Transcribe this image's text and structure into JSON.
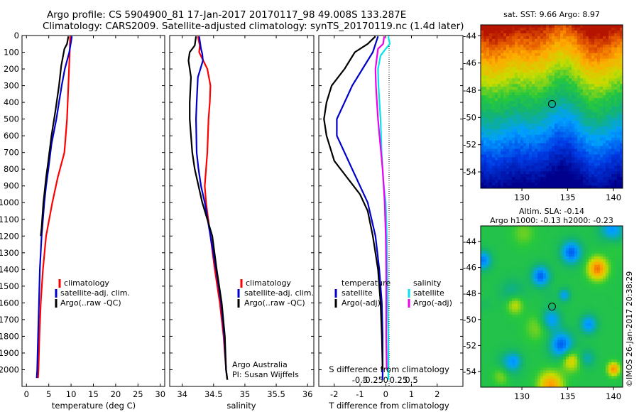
{
  "header": {
    "title_line1": "Argo profile: CS 5904900_81 17-Jan-2017 20170117_98 49.008S 133.287E",
    "title_line2": "Climatology: CARS2009. Satellite-adjusted climatology: synTS_20170119.nc (1.4d later)"
  },
  "colors": {
    "climatology": "#ff0000",
    "satellite": "#0000cc",
    "argo": "#000000",
    "satellite_s": "#00e5ee",
    "argo_s_diff": "#ee00ee"
  },
  "chart_data": [
    {
      "type": "line",
      "id": "temperature-profile",
      "xlabel": "temperature (deg C)",
      "ylabel": "",
      "xlim": [
        -1,
        31
      ],
      "ylim": [
        2100,
        0
      ],
      "xticks": [
        0,
        5,
        10,
        15,
        20,
        25,
        30
      ],
      "yticks": [
        0,
        100,
        200,
        300,
        400,
        500,
        600,
        700,
        800,
        900,
        1000,
        1100,
        1200,
        1300,
        1400,
        1500,
        1600,
        1700,
        1800,
        1900,
        2000
      ],
      "legend": {
        "placement": "bottom-center",
        "entries": [
          "climatology",
          "satellite-adj. clim.",
          "Argo(..raw -QC)"
        ]
      },
      "series": [
        {
          "name": "climatology",
          "color": "#ff0000",
          "points": [
            [
              9.8,
              5
            ],
            [
              9.7,
              100
            ],
            [
              9.4,
              300
            ],
            [
              9.1,
              500
            ],
            [
              8.5,
              700
            ],
            [
              7.0,
              850
            ],
            [
              5.8,
              1000
            ],
            [
              4.4,
              1200
            ],
            [
              3.7,
              1400
            ],
            [
              3.2,
              1600
            ],
            [
              2.9,
              1800
            ],
            [
              2.7,
              2000
            ],
            [
              2.6,
              2050
            ]
          ]
        },
        {
          "name": "satellite-adj. clim.",
          "color": "#0000cc",
          "points": [
            [
              10.2,
              5
            ],
            [
              9.6,
              100
            ],
            [
              8.6,
              200
            ],
            [
              7.9,
              300
            ],
            [
              7.3,
              400
            ],
            [
              6.7,
              500
            ],
            [
              5.6,
              650
            ],
            [
              4.9,
              800
            ],
            [
              4.4,
              900
            ],
            [
              4.0,
              1000
            ],
            [
              3.4,
              1200
            ],
            [
              3.0,
              1400
            ],
            [
              2.8,
              1600
            ],
            [
              2.6,
              1800
            ],
            [
              2.4,
              2000
            ],
            [
              2.3,
              2050
            ]
          ]
        },
        {
          "name": "Argo(..raw -QC)",
          "color": "#000000",
          "points": [
            [
              9.4,
              5
            ],
            [
              9.1,
              50
            ],
            [
              8.5,
              80
            ],
            [
              7.8,
              180
            ],
            [
              7.3,
              300
            ],
            [
              6.5,
              450
            ],
            [
              5.6,
              600
            ],
            [
              4.9,
              750
            ],
            [
              4.4,
              850
            ],
            [
              4.0,
              950
            ],
            [
              3.8,
              1000
            ],
            [
              3.4,
              1150
            ],
            [
              3.2,
              1200
            ]
          ]
        }
      ]
    },
    {
      "type": "line",
      "id": "salinity-profile",
      "xlabel": "salinity",
      "ylabel": "",
      "xlim": [
        33.8,
        36.1
      ],
      "ylim": [
        2100,
        0
      ],
      "xticks": [
        34,
        34.5,
        35,
        35.5,
        36
      ],
      "legend": {
        "placement": "bottom-right",
        "entries": [
          "climatology",
          "satellite-adj. clim.",
          "Argo(..raw -QC)"
        ]
      },
      "annotations": [
        "Argo Australia",
        "PI: Susan Wijffels"
      ],
      "series": [
        {
          "name": "climatology",
          "color": "#ff0000",
          "points": [
            [
              34.25,
              5
            ],
            [
              34.28,
              60
            ],
            [
              34.27,
              100
            ],
            [
              34.4,
              200
            ],
            [
              34.45,
              300
            ],
            [
              34.44,
              400
            ],
            [
              34.42,
              500
            ],
            [
              34.4,
              700
            ],
            [
              34.38,
              800
            ],
            [
              34.36,
              900
            ],
            [
              34.38,
              1000
            ],
            [
              34.45,
              1200
            ],
            [
              34.52,
              1400
            ],
            [
              34.6,
              1600
            ],
            [
              34.66,
              1800
            ],
            [
              34.7,
              2000
            ],
            [
              34.72,
              2060
            ]
          ]
        },
        {
          "name": "satellite-adj. clim.",
          "color": "#0000cc",
          "points": [
            [
              34.27,
              5
            ],
            [
              34.3,
              80
            ],
            [
              34.32,
              110
            ],
            [
              34.33,
              150
            ],
            [
              34.25,
              250
            ],
            [
              34.23,
              400
            ],
            [
              34.22,
              500
            ],
            [
              34.23,
              700
            ],
            [
              34.26,
              800
            ],
            [
              34.3,
              900
            ],
            [
              34.36,
              1000
            ],
            [
              34.45,
              1200
            ],
            [
              34.54,
              1400
            ],
            [
              34.62,
              1600
            ],
            [
              34.67,
              1800
            ],
            [
              34.7,
              2000
            ],
            [
              34.72,
              2060
            ]
          ]
        },
        {
          "name": "Argo(..raw -QC)",
          "color": "#000000",
          "points": [
            [
              34.22,
              5
            ],
            [
              34.2,
              60
            ],
            [
              34.12,
              100
            ],
            [
              34.1,
              150
            ],
            [
              34.14,
              250
            ],
            [
              34.12,
              400
            ],
            [
              34.12,
              500
            ],
            [
              34.14,
              600
            ],
            [
              34.16,
              700
            ],
            [
              34.2,
              800
            ],
            [
              34.26,
              900
            ],
            [
              34.32,
              1000
            ],
            [
              34.4,
              1100
            ],
            [
              34.48,
              1200
            ],
            [
              34.55,
              1400
            ],
            [
              34.63,
              1600
            ],
            [
              34.68,
              1800
            ],
            [
              34.7,
              2000
            ],
            [
              34.72,
              2060
            ]
          ]
        }
      ]
    },
    {
      "type": "line",
      "id": "difference-profile",
      "xlabel": "T difference from climatology",
      "xlabel_top": "S difference from climatology",
      "xlim": [
        -2.6,
        3.0
      ],
      "ylim": [
        2100,
        0
      ],
      "xticks": [
        -2,
        -1,
        0,
        1,
        2
      ],
      "xticks_s": [
        -0.5,
        -0.25,
        0,
        0.25,
        0.5
      ],
      "legend": {
        "placement": "bottom",
        "left_title": "temperature",
        "right_title": "salinity",
        "entries": [
          "satellite",
          "Argo(-adj)",
          "satellite",
          "Argo(-adj)"
        ]
      },
      "series": [
        {
          "name": "satellite",
          "quantity": "temperature",
          "color": "#0000cc",
          "points": [
            [
              -0.3,
              5
            ],
            [
              -0.5,
              100
            ],
            [
              -0.9,
              200
            ],
            [
              -1.3,
              300
            ],
            [
              -1.6,
              400
            ],
            [
              -1.9,
              500
            ],
            [
              -1.9,
              600
            ],
            [
              -1.6,
              700
            ],
            [
              -1.3,
              800
            ],
            [
              -1.0,
              900
            ],
            [
              -0.7,
              1000
            ],
            [
              -0.4,
              1200
            ],
            [
              -0.25,
              1400
            ],
            [
              -0.15,
              1600
            ],
            [
              -0.12,
              1800
            ],
            [
              -0.12,
              2000
            ],
            [
              -0.12,
              2060
            ]
          ]
        },
        {
          "name": "Argo(-adj)",
          "quantity": "temperature",
          "color": "#000000",
          "points": [
            [
              -0.4,
              5
            ],
            [
              -0.7,
              50
            ],
            [
              -1.2,
              100
            ],
            [
              -1.6,
              200
            ],
            [
              -2.1,
              300
            ],
            [
              -2.3,
              400
            ],
            [
              -2.4,
              500
            ],
            [
              -2.3,
              600
            ],
            [
              -2.0,
              750
            ],
            [
              -1.5,
              850
            ],
            [
              -1.0,
              950
            ],
            [
              -0.7,
              1050
            ],
            [
              -0.5,
              1200
            ],
            [
              -0.3,
              1400
            ],
            [
              -0.2,
              1600
            ],
            [
              -0.15,
              1800
            ],
            [
              -0.12,
              2000
            ]
          ]
        },
        {
          "name": "satellite",
          "quantity": "salinity",
          "color": "#00e5ee",
          "points": [
            [
              0.05,
              5
            ],
            [
              0.08,
              50
            ],
            [
              0.0,
              80
            ],
            [
              -0.1,
              120
            ],
            [
              -0.15,
              200
            ],
            [
              -0.14,
              300
            ],
            [
              -0.12,
              400
            ],
            [
              -0.1,
              500
            ],
            [
              -0.08,
              700
            ],
            [
              -0.05,
              850
            ],
            [
              -0.02,
              950
            ],
            [
              0.0,
              1000
            ],
            [
              0.02,
              1200
            ],
            [
              0.03,
              1400
            ],
            [
              0.04,
              1600
            ],
            [
              0.05,
              1800
            ],
            [
              0.05,
              2000
            ],
            [
              0.05,
              2060
            ]
          ]
        },
        {
          "name": "Argo(-adj)",
          "quantity": "salinity",
          "color": "#ee00ee",
          "points": [
            [
              -0.03,
              5
            ],
            [
              -0.05,
              50
            ],
            [
              -0.15,
              80
            ],
            [
              -0.2,
              200
            ],
            [
              -0.19,
              300
            ],
            [
              -0.17,
              400
            ],
            [
              -0.15,
              500
            ],
            [
              -0.12,
              600
            ],
            [
              -0.09,
              700
            ],
            [
              -0.06,
              800
            ],
            [
              -0.04,
              900
            ],
            [
              -0.02,
              1000
            ],
            [
              0.0,
              1200
            ],
            [
              0.01,
              1400
            ],
            [
              0.01,
              1600
            ],
            [
              0.01,
              1800
            ],
            [
              0.02,
              2000
            ]
          ]
        }
      ]
    },
    {
      "type": "heatmap",
      "id": "sst-map",
      "title": "sat. SST: 9.66  Argo: 8.97",
      "xlim": [
        125.5,
        141
      ],
      "ylim": [
        -55.2,
        -43.2
      ],
      "xticks": [
        130,
        135,
        140
      ],
      "yticks": [
        -44,
        -46,
        -48,
        -50,
        -52,
        -54
      ],
      "marker": {
        "lon": 133.287,
        "lat": -49.008
      }
    },
    {
      "type": "heatmap",
      "id": "sla-map",
      "title_line1": "Altim. SLA: -0.14",
      "title_line2": "Argo h1000: -0.13 h2000: -0.23",
      "xlim": [
        125.5,
        141
      ],
      "ylim": [
        -55.2,
        -42.8
      ],
      "xticks": [
        130,
        135,
        140
      ],
      "yticks": [
        -44,
        -46,
        -48,
        -50,
        -52,
        -54
      ],
      "marker": {
        "lon": 133.287,
        "lat": -49.008
      }
    }
  ],
  "credit": "©IMOS 26-Jan-2017 20:38:29"
}
